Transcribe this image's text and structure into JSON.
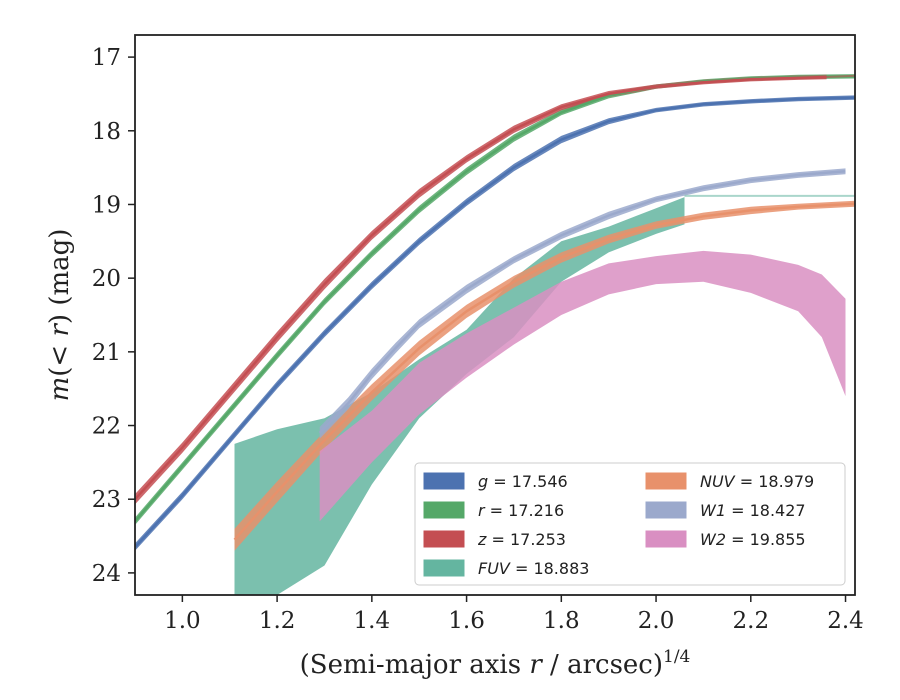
{
  "chart_data": {
    "type": "line",
    "xlabel": "(Semi-major axis r / arcsec)^1/4",
    "ylabel": "m(< r) (mag)",
    "xlim": [
      0.9,
      2.42
    ],
    "ylim": [
      24.3,
      16.7
    ],
    "y_inverted": true,
    "x_ticks": [
      1.0,
      1.2,
      1.4,
      1.6,
      1.8,
      2.0,
      2.2,
      2.4
    ],
    "x_tick_labels": [
      "1.0",
      "1.2",
      "1.4",
      "1.6",
      "1.8",
      "2.0",
      "2.2",
      "2.4"
    ],
    "y_ticks": [
      17,
      18,
      19,
      20,
      21,
      22,
      23,
      24
    ],
    "y_tick_labels": [
      "17",
      "18",
      "19",
      "20",
      "21",
      "22",
      "23",
      "24"
    ],
    "grid": false,
    "legend_position": "lower-right",
    "series": [
      {
        "name": "g",
        "legend_label": "g = 17.546",
        "color": "#4c72b0",
        "asymptote": 17.546,
        "x": [
          0.9,
          1.0,
          1.1,
          1.2,
          1.3,
          1.4,
          1.5,
          1.6,
          1.7,
          1.8,
          1.9,
          2.0,
          2.1,
          2.2,
          2.3,
          2.42
        ],
        "y": [
          23.65,
          22.95,
          22.2,
          21.45,
          20.75,
          20.1,
          19.5,
          18.97,
          18.5,
          18.12,
          17.87,
          17.72,
          17.64,
          17.6,
          17.57,
          17.55
        ],
        "y_err": [
          0.05,
          0.05,
          0.05,
          0.05,
          0.05,
          0.05,
          0.05,
          0.05,
          0.05,
          0.05,
          0.04,
          0.03,
          0.03,
          0.03,
          0.03,
          0.03
        ]
      },
      {
        "name": "r",
        "legend_label": "r = 17.216",
        "color": "#55a868",
        "asymptote": 17.216,
        "x": [
          0.9,
          1.0,
          1.1,
          1.2,
          1.3,
          1.4,
          1.5,
          1.6,
          1.7,
          1.8,
          1.9,
          2.0,
          2.1,
          2.2,
          2.3,
          2.42
        ],
        "y": [
          23.3,
          22.55,
          21.8,
          21.05,
          20.32,
          19.67,
          19.07,
          18.55,
          18.1,
          17.75,
          17.52,
          17.4,
          17.33,
          17.29,
          17.27,
          17.26
        ],
        "y_err": [
          0.05,
          0.05,
          0.05,
          0.05,
          0.05,
          0.05,
          0.05,
          0.05,
          0.05,
          0.04,
          0.04,
          0.03,
          0.03,
          0.03,
          0.03,
          0.03
        ]
      },
      {
        "name": "z",
        "legend_label": "z = 17.253",
        "color": "#c44e52",
        "asymptote": 17.253,
        "x": [
          0.9,
          1.0,
          1.1,
          1.2,
          1.3,
          1.4,
          1.5,
          1.6,
          1.7,
          1.8,
          1.9,
          2.0,
          2.1,
          2.2,
          2.3,
          2.36
        ],
        "y": [
          23.0,
          22.3,
          21.55,
          20.8,
          20.08,
          19.42,
          18.85,
          18.38,
          17.98,
          17.68,
          17.5,
          17.4,
          17.34,
          17.3,
          17.28,
          17.27
        ],
        "y_err": [
          0.07,
          0.07,
          0.07,
          0.07,
          0.07,
          0.06,
          0.06,
          0.05,
          0.05,
          0.04,
          0.04,
          0.03,
          0.03,
          0.03,
          0.03,
          0.03
        ]
      },
      {
        "name": "FUV",
        "legend_label": "FUV = 18.883",
        "color": "#64b5a0",
        "asymptote": 18.883,
        "x": [
          1.11,
          1.2,
          1.3,
          1.4,
          1.5,
          1.6,
          1.7,
          1.8,
          1.9,
          2.0,
          2.06
        ],
        "y_lower": [
          24.5,
          24.3,
          23.9,
          22.8,
          21.9,
          21.3,
          20.8,
          20.05,
          19.65,
          19.4,
          19.27
        ],
        "y_upper": [
          22.25,
          22.05,
          21.9,
          21.55,
          21.1,
          20.7,
          20.0,
          19.5,
          19.3,
          19.05,
          18.9
        ]
      },
      {
        "name": "NUV",
        "legend_label": "NUV = 18.979",
        "color": "#e8916b",
        "asymptote": 18.979,
        "x": [
          1.11,
          1.2,
          1.3,
          1.4,
          1.5,
          1.6,
          1.7,
          1.8,
          1.9,
          2.0,
          2.1,
          2.2,
          2.3,
          2.42
        ],
        "y": [
          23.55,
          22.9,
          22.2,
          21.55,
          20.95,
          20.45,
          20.05,
          19.72,
          19.47,
          19.28,
          19.16,
          19.08,
          19.03,
          18.99
        ],
        "y_err": [
          0.15,
          0.14,
          0.12,
          0.11,
          0.1,
          0.09,
          0.08,
          0.07,
          0.06,
          0.05,
          0.05,
          0.05,
          0.04,
          0.04
        ]
      },
      {
        "name": "W1",
        "legend_label": "W1 = 18.427",
        "color": "#9ba9cc",
        "asymptote": 18.427,
        "x": [
          1.29,
          1.35,
          1.4,
          1.45,
          1.5,
          1.6,
          1.7,
          1.8,
          1.9,
          2.0,
          2.1,
          2.2,
          2.3,
          2.4
        ],
        "y": [
          22.1,
          21.7,
          21.3,
          20.95,
          20.62,
          20.15,
          19.75,
          19.42,
          19.15,
          18.93,
          18.78,
          18.67,
          18.6,
          18.55
        ],
        "y_err": [
          0.08,
          0.08,
          0.07,
          0.07,
          0.06,
          0.06,
          0.05,
          0.05,
          0.05,
          0.04,
          0.04,
          0.04,
          0.04,
          0.04
        ]
      },
      {
        "name": "W2",
        "legend_label": "W2 = 19.855",
        "color": "#d98fc2",
        "asymptote": 19.855,
        "x": [
          1.29,
          1.4,
          1.5,
          1.6,
          1.7,
          1.8,
          1.9,
          2.0,
          2.1,
          2.2,
          2.3,
          2.35,
          2.4
        ],
        "y_lower": [
          23.3,
          22.5,
          21.85,
          21.35,
          20.9,
          20.5,
          20.22,
          20.08,
          20.05,
          20.2,
          20.45,
          20.8,
          21.6
        ],
        "y_upper": [
          22.35,
          21.8,
          21.15,
          20.75,
          20.4,
          20.05,
          19.8,
          19.7,
          19.63,
          19.68,
          19.82,
          19.95,
          20.28
        ]
      }
    ]
  }
}
